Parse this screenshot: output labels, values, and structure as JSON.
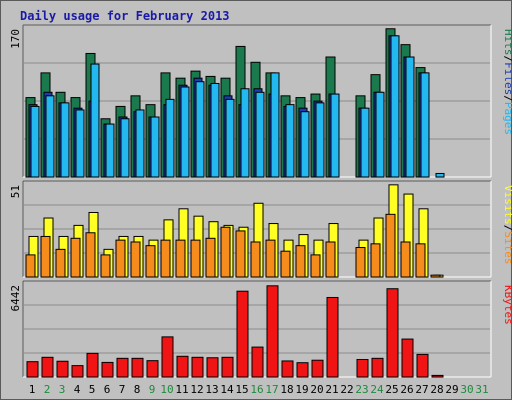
{
  "title": "Daily usage for February 2013",
  "days": [
    "1",
    "2",
    "3",
    "4",
    "5",
    "6",
    "7",
    "8",
    "9",
    "10",
    "11",
    "12",
    "13",
    "14",
    "15",
    "16",
    "17",
    "18",
    "19",
    "20",
    "21",
    "22",
    "23",
    "24",
    "25",
    "26",
    "27",
    "28",
    "29",
    "30",
    "31"
  ],
  "weekend_days": [
    "2",
    "3",
    "9",
    "10",
    "16",
    "17",
    "23",
    "24",
    "30",
    "31"
  ],
  "colors": {
    "background": "#c0c0c0",
    "title": "#1a1aa8",
    "hits": "#1a7a4e",
    "files": "#1a3cb0",
    "pages": "#23b8f0",
    "visits": "#ffff24",
    "sites": "#f58c1c",
    "kbytes": "#f01414",
    "weekday_label": "#000000",
    "weekend_label": "#1f8a3c"
  },
  "chart_data": [
    {
      "type": "bar",
      "name": "hits_files_pages",
      "ymax_label": "170",
      "ylim": [
        0,
        170
      ],
      "right_label": [
        "Pages",
        "/",
        "Files",
        "/",
        "Hits"
      ],
      "categories": [
        "1",
        "2",
        "3",
        "4",
        "5",
        "6",
        "7",
        "8",
        "9",
        "10",
        "11",
        "12",
        "13",
        "14",
        "15",
        "16",
        "17",
        "18",
        "19",
        "20",
        "21",
        "22",
        "23",
        "24",
        "25",
        "26",
        "27",
        "28",
        "29",
        "30",
        "31"
      ],
      "series": [
        {
          "name": "Hits",
          "values": [
            90,
            118,
            96,
            90,
            140,
            66,
            80,
            92,
            82,
            118,
            112,
            120,
            114,
            112,
            148,
            130,
            118,
            92,
            90,
            94,
            136,
            0,
            92,
            116,
            168,
            150,
            124,
            0,
            0,
            0,
            0
          ]
        },
        {
          "name": "Files",
          "values": [
            82,
            96,
            84,
            78,
            86,
            60,
            68,
            74,
            68,
            82,
            104,
            112,
            104,
            92,
            82,
            100,
            94,
            80,
            78,
            86,
            94,
            0,
            78,
            96,
            160,
            136,
            118,
            0,
            0,
            0,
            0
          ]
        },
        {
          "name": "Pages",
          "values": [
            80,
            92,
            84,
            76,
            128,
            60,
            66,
            76,
            68,
            88,
            102,
            108,
            106,
            88,
            100,
            96,
            118,
            82,
            74,
            84,
            94,
            0,
            78,
            96,
            160,
            136,
            118,
            4,
            0,
            0,
            0
          ]
        }
      ]
    },
    {
      "type": "bar",
      "name": "visits_sites",
      "ymax_label": "51",
      "ylim": [
        0,
        51
      ],
      "right_label": [
        "Sites",
        "/",
        "Visits"
      ],
      "categories": [
        "1",
        "2",
        "3",
        "4",
        "5",
        "6",
        "7",
        "8",
        "9",
        "10",
        "11",
        "12",
        "13",
        "14",
        "15",
        "16",
        "17",
        "18",
        "19",
        "20",
        "21",
        "22",
        "23",
        "24",
        "25",
        "26",
        "27",
        "28",
        "29",
        "30",
        "31"
      ],
      "series": [
        {
          "name": "Visits",
          "values": [
            22,
            32,
            22,
            28,
            35,
            15,
            22,
            22,
            20,
            31,
            37,
            33,
            30,
            28,
            27,
            40,
            29,
            20,
            23,
            20,
            29,
            0,
            20,
            32,
            50,
            45,
            37,
            1,
            0,
            0,
            0
          ]
        },
        {
          "name": "Sites",
          "values": [
            12,
            22,
            15,
            21,
            24,
            12,
            20,
            19,
            17,
            20,
            20,
            20,
            21,
            27,
            25,
            19,
            20,
            14,
            17,
            12,
            19,
            0,
            16,
            18,
            34,
            19,
            18,
            1,
            0,
            0,
            0
          ]
        }
      ]
    },
    {
      "type": "bar",
      "name": "kbytes",
      "ymax_label": "6442",
      "ylim": [
        0,
        6442
      ],
      "right_label": [
        "KBytes"
      ],
      "categories": [
        "1",
        "2",
        "3",
        "4",
        "5",
        "6",
        "7",
        "8",
        "9",
        "10",
        "11",
        "12",
        "13",
        "14",
        "15",
        "16",
        "17",
        "18",
        "19",
        "20",
        "21",
        "22",
        "23",
        "24",
        "25",
        "26",
        "27",
        "28",
        "29",
        "30",
        "31"
      ],
      "series": [
        {
          "name": "KBytes",
          "values": [
            1050,
            1350,
            1080,
            780,
            1620,
            1000,
            1280,
            1280,
            1120,
            2750,
            1420,
            1350,
            1320,
            1350,
            5880,
            2050,
            6250,
            1100,
            980,
            1150,
            5450,
            0,
            1200,
            1280,
            6050,
            2600,
            1550,
            110,
            0,
            0,
            0
          ]
        }
      ]
    }
  ]
}
